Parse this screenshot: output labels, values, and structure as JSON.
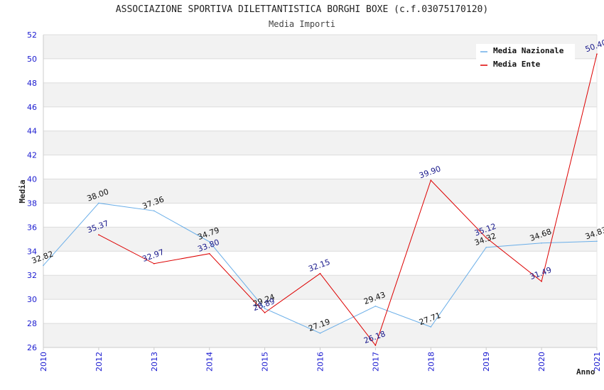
{
  "chart_data": {
    "type": "line",
    "title": "ASSOCIAZIONE SPORTIVA DILETTANTISTICA BORGHI BOXE (c.f.03075170120)",
    "subtitle": "Media Importi",
    "xlabel": "Anno",
    "ylabel": "Media",
    "x": [
      "2010",
      "2012",
      "2013",
      "2014",
      "2015",
      "2016",
      "2017",
      "2018",
      "2019",
      "2020",
      "2021"
    ],
    "yticks": [
      "26",
      "28",
      "30",
      "32",
      "34",
      "36",
      "38",
      "40",
      "42",
      "44",
      "46",
      "48",
      "50",
      "52"
    ],
    "ylim": [
      26,
      52
    ],
    "grid": true,
    "legend_position": "top-right",
    "series": [
      {
        "name": "Media Nazionale",
        "color": "#6aaee8",
        "label_color": "#111111",
        "values": [
          32.82,
          38.0,
          37.36,
          34.79,
          29.24,
          27.19,
          29.43,
          27.71,
          34.32,
          34.68,
          34.83
        ],
        "labels": [
          "32.82",
          "38.00",
          "37.36",
          "34.79",
          "29.24",
          "27.19",
          "29.43",
          "27.71",
          "34.32",
          "34.68",
          "34.83"
        ]
      },
      {
        "name": "Media Ente",
        "color": "#dd0000",
        "label_color": "#1a1a8c",
        "values": [
          null,
          35.37,
          32.97,
          33.8,
          28.89,
          32.15,
          26.18,
          39.9,
          35.12,
          31.49,
          50.4
        ],
        "labels": [
          null,
          "35.37",
          "32.97",
          "33.80",
          "28.89",
          "32.15",
          "26.18",
          "39.90",
          "35.12",
          "31.49",
          "50.40"
        ]
      }
    ]
  }
}
